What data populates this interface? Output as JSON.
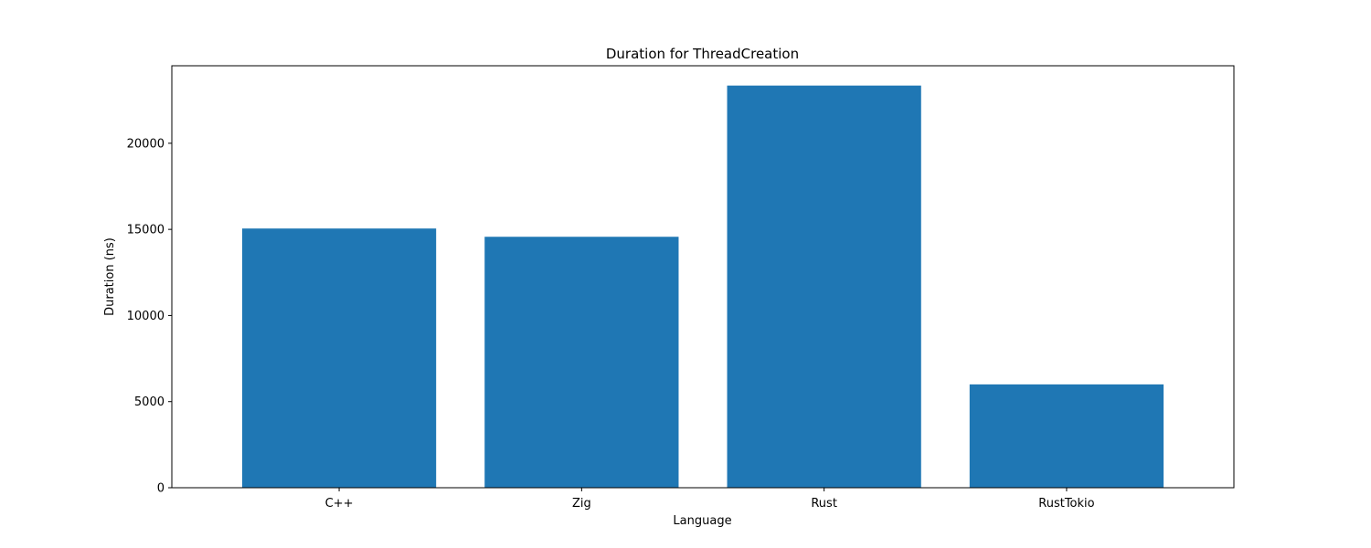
{
  "chart_data": {
    "type": "bar",
    "title": "Duration for ThreadCreation",
    "xlabel": "Language",
    "ylabel": "Duration (ns)",
    "categories": [
      "C++",
      "Zig",
      "Rust",
      "RustTokio"
    ],
    "values": [
      15050,
      14570,
      23350,
      6000
    ],
    "ylim": [
      0,
      24500
    ],
    "yticks": [
      0,
      5000,
      10000,
      15000,
      20000
    ],
    "bar_color": "#1f77b4",
    "grid": false,
    "legend": "none"
  }
}
